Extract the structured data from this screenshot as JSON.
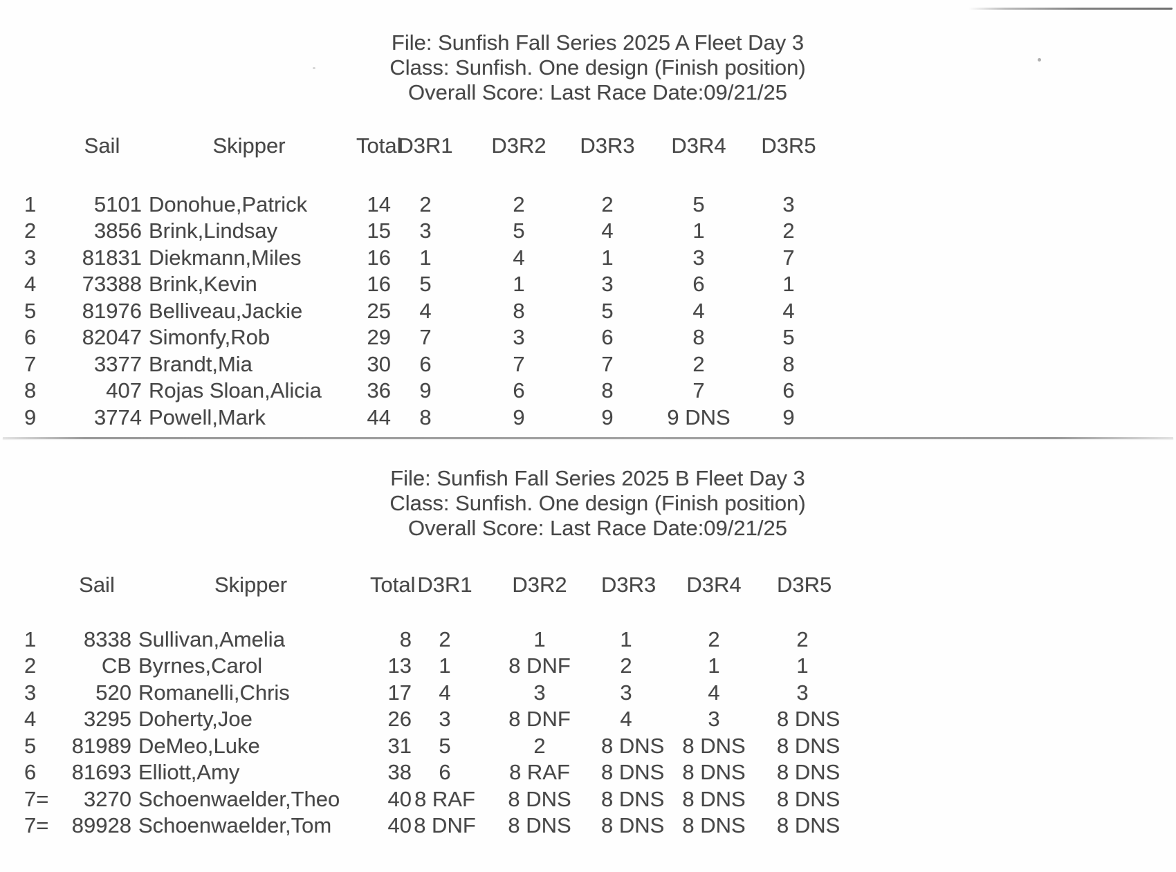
{
  "document": {
    "fleets": [
      {
        "name": "A Fleet",
        "header": {
          "file_line": "File: Sunfish Fall Series 2025 A Fleet Day 3",
          "class_line": "Class: Sunfish. One design (Finish position)",
          "score_line": "Overall Score: Last Race Date:09/21/25"
        },
        "columns": {
          "sail": "Sail",
          "skipper": "Skipper",
          "total": "Total",
          "races": [
            "D3R1",
            "D3R2",
            "D3R3",
            "D3R4",
            "D3R5"
          ]
        },
        "rows": [
          {
            "pos": "1",
            "sail": "5101",
            "skipper": "Donohue,Patrick",
            "total": "14",
            "r1": "2",
            "r2": "2",
            "r3": "2",
            "r4": "5",
            "r5": "3"
          },
          {
            "pos": "2",
            "sail": "3856",
            "skipper": "Brink,Lindsay",
            "total": "15",
            "r1": "3",
            "r2": "5",
            "r3": "4",
            "r4": "1",
            "r5": "2"
          },
          {
            "pos": "3",
            "sail": "81831",
            "skipper": "Diekmann,Miles",
            "total": "16",
            "r1": "1",
            "r2": "4",
            "r3": "1",
            "r4": "3",
            "r5": "7"
          },
          {
            "pos": "4",
            "sail": "73388",
            "skipper": "Brink,Kevin",
            "total": "16",
            "r1": "5",
            "r2": "1",
            "r3": "3",
            "r4": "6",
            "r5": "1"
          },
          {
            "pos": "5",
            "sail": "81976",
            "skipper": "Belliveau,Jackie",
            "total": "25",
            "r1": "4",
            "r2": "8",
            "r3": "5",
            "r4": "4",
            "r5": "4"
          },
          {
            "pos": "6",
            "sail": "82047",
            "skipper": "Simonfy,Rob",
            "total": "29",
            "r1": "7",
            "r2": "3",
            "r3": "6",
            "r4": "8",
            "r5": "5"
          },
          {
            "pos": "7",
            "sail": "3377",
            "skipper": "Brandt,Mia",
            "total": "30",
            "r1": "6",
            "r2": "7",
            "r3": "7",
            "r4": "2",
            "r5": "8"
          },
          {
            "pos": "8",
            "sail": "407",
            "skipper": "Rojas Sloan,Alicia",
            "total": "36",
            "r1": "9",
            "r2": "6",
            "r3": "8",
            "r4": "7",
            "r5": "6"
          },
          {
            "pos": "9",
            "sail": "3774",
            "skipper": "Powell,Mark",
            "total": "44",
            "r1": "8",
            "r2": "9",
            "r3": "9",
            "r4": "9 DNS",
            "r5": "9"
          }
        ]
      },
      {
        "name": "B Fleet",
        "header": {
          "file_line": "File: Sunfish Fall Series 2025 B Fleet Day 3",
          "class_line": "Class: Sunfish. One design (Finish position)",
          "score_line": "Overall Score: Last Race Date:09/21/25"
        },
        "columns": {
          "sail": "Sail",
          "skipper": "Skipper",
          "total": "Total",
          "races": [
            "D3R1",
            "D3R2",
            "D3R3",
            "D3R4",
            "D3R5"
          ]
        },
        "rows": [
          {
            "pos": "1",
            "sail": "8338",
            "skipper": "Sullivan,Amelia",
            "total": "8",
            "r1": "2",
            "r2": "1",
            "r3": "1",
            "r4": "2",
            "r5": "2"
          },
          {
            "pos": "2",
            "sail": "CB",
            "skipper": "Byrnes,Carol",
            "total": "13",
            "r1": "1",
            "r2": "8 DNF",
            "r3": "2",
            "r4": "1",
            "r5": "1"
          },
          {
            "pos": "3",
            "sail": "520",
            "skipper": "Romanelli,Chris",
            "total": "17",
            "r1": "4",
            "r2": "3",
            "r3": "3",
            "r4": "4",
            "r5": "3"
          },
          {
            "pos": "4",
            "sail": "3295",
            "skipper": "Doherty,Joe",
            "total": "26",
            "r1": "3",
            "r2": "8 DNF",
            "r3": "4",
            "r4": "3",
            "r5": "8 DNS"
          },
          {
            "pos": "5",
            "sail": "81989",
            "skipper": "DeMeo,Luke",
            "total": "31",
            "r1": "5",
            "r2": "2",
            "r3": "8 DNS",
            "r4": "8 DNS",
            "r5": "8 DNS"
          },
          {
            "pos": "6",
            "sail": "81693",
            "skipper": "Elliott,Amy",
            "total": "38",
            "r1": "6",
            "r2": "8 RAF",
            "r3": "8 DNS",
            "r4": "8 DNS",
            "r5": "8 DNS"
          },
          {
            "pos": "7=",
            "sail": "3270",
            "skipper": "Schoenwaelder,Theo",
            "total": "40",
            "r1": "8 RAF",
            "r2": "8 DNS",
            "r3": "8 DNS",
            "r4": "8 DNS",
            "r5": "8 DNS"
          },
          {
            "pos": "7=",
            "sail": "89928",
            "skipper": "Schoenwaelder,Tom",
            "total": "40",
            "r1": "8 DNF",
            "r2": "8 DNS",
            "r3": "8 DNS",
            "r4": "8 DNS",
            "r5": "8 DNS"
          }
        ]
      }
    ]
  }
}
